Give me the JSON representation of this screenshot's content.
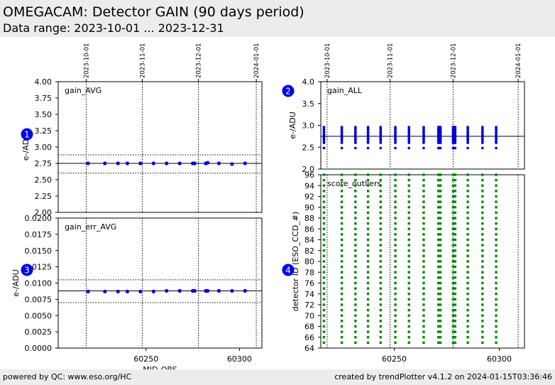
{
  "header": {
    "title": "OMEGACAM: Detector GAIN (90 days period)",
    "subtitle": "Data range: 2023-10-01 ... 2023-12-31"
  },
  "footer": {
    "left": "powered by QC: www.eso.org/HC",
    "right": "created by trendPlotter v4.1.2 on 2024-01-15T03:36:46"
  },
  "colors": {
    "points_blue": "#0000dd",
    "points_green": "#008800",
    "marker": "#0000ee"
  },
  "chart_data": [
    {
      "id": "gain_avg",
      "type": "scatter",
      "label": "gain_AVG",
      "ylabel": "e-/ADU",
      "marker_number": "1",
      "xlim": [
        60203,
        60312
      ],
      "ylim": [
        2.0,
        4.0
      ],
      "yticks": [
        "2.00",
        "2.25",
        "2.50",
        "2.75",
        "3.00",
        "3.25",
        "3.50",
        "3.75",
        "4.00"
      ],
      "date_ticks": [
        {
          "mjd": 60218,
          "label": "2023-10-01"
        },
        {
          "mjd": 60248,
          "label": "2023-11-01"
        },
        {
          "mjd": 60278,
          "label": "2023-12-01"
        },
        {
          "mjd": 60309,
          "label": "2024-01-01"
        }
      ],
      "mean": 2.75,
      "band": [
        2.6,
        2.88
      ],
      "x": [
        60219,
        60228,
        60235,
        60240,
        60247,
        60254,
        60261,
        60268,
        60275,
        60276,
        60282,
        60283,
        60289,
        60296,
        60303
      ],
      "y": [
        2.75,
        2.75,
        2.75,
        2.75,
        2.75,
        2.75,
        2.75,
        2.75,
        2.75,
        2.75,
        2.75,
        2.76,
        2.75,
        2.74,
        2.75
      ]
    },
    {
      "id": "gain_err_avg",
      "type": "scatter",
      "label": "gain_err_AVG",
      "ylabel": "e-/ADU",
      "xlabel": "MJD-OBS",
      "marker_number": "3",
      "xlim": [
        60203,
        60312
      ],
      "ylim": [
        0.0,
        0.02
      ],
      "yticks": [
        "0.0000",
        "0.0025",
        "0.0050",
        "0.0075",
        "0.0100",
        "0.0125",
        "0.0150",
        "0.0175",
        "0.0200"
      ],
      "xticks": [
        60250,
        60300
      ],
      "date_lines": [
        60218,
        60248,
        60278,
        60309
      ],
      "mean": 0.0088,
      "band": [
        0.007,
        0.0105
      ],
      "x": [
        60219,
        60228,
        60235,
        60240,
        60247,
        60254,
        60261,
        60268,
        60275,
        60276,
        60282,
        60283,
        60289,
        60296,
        60303
      ],
      "y": [
        0.0087,
        0.0087,
        0.0087,
        0.0087,
        0.0087,
        0.0087,
        0.0088,
        0.0088,
        0.0088,
        0.0088,
        0.0088,
        0.0088,
        0.0088,
        0.0088,
        0.0088
      ]
    },
    {
      "id": "gain_all",
      "type": "scatter",
      "label": "gain_ALL",
      "ylabel": "e-/ADU",
      "marker_number": "2",
      "xlim": [
        60215,
        60312
      ],
      "ylim": [
        2.0,
        4.0
      ],
      "yticks": [
        "2.0",
        "2.5",
        "3.0",
        "3.5",
        "4.0"
      ],
      "date_ticks": [
        {
          "mjd": 60218,
          "label": "2023-10-01"
        },
        {
          "mjd": 60248,
          "label": "2023-11-01"
        },
        {
          "mjd": 60278,
          "label": "2023-12-01"
        },
        {
          "mjd": 60309,
          "label": "2024-01-01"
        }
      ],
      "mean": 2.75,
      "columns": [
        60216.5,
        60225,
        60231.5,
        60237.5,
        60243.5,
        60250.5,
        60257,
        60264,
        60271,
        60271.5,
        60272,
        60278,
        60278.5,
        60279,
        60285,
        60292,
        60298.5
      ],
      "values": [
        2.48,
        2.6,
        2.63,
        2.66,
        2.69,
        2.72,
        2.74,
        2.76,
        2.78,
        2.81,
        2.84,
        2.87,
        2.9,
        2.93,
        2.96
      ]
    },
    {
      "id": "score_outliers",
      "type": "scatter",
      "label": "score_outliers",
      "ylabel": "detector ID (ESO_CCD_#)",
      "marker_number": "4",
      "xlim": [
        60215,
        60312
      ],
      "ylim": [
        64,
        96
      ],
      "yticks": [
        "64",
        "66",
        "68",
        "70",
        "72",
        "74",
        "76",
        "78",
        "80",
        "82",
        "84",
        "86",
        "88",
        "90",
        "92",
        "94",
        "96"
      ],
      "xticks": [
        60250,
        60300
      ],
      "date_lines": [
        60218,
        60248,
        60278,
        60309
      ],
      "columns": [
        60216.5,
        60225,
        60231.5,
        60237.5,
        60243.5,
        60250.5,
        60257,
        60264,
        60271,
        60272,
        60278,
        60279,
        60285,
        60292,
        60298.5
      ],
      "ccd_range": [
        65,
        96
      ]
    }
  ]
}
